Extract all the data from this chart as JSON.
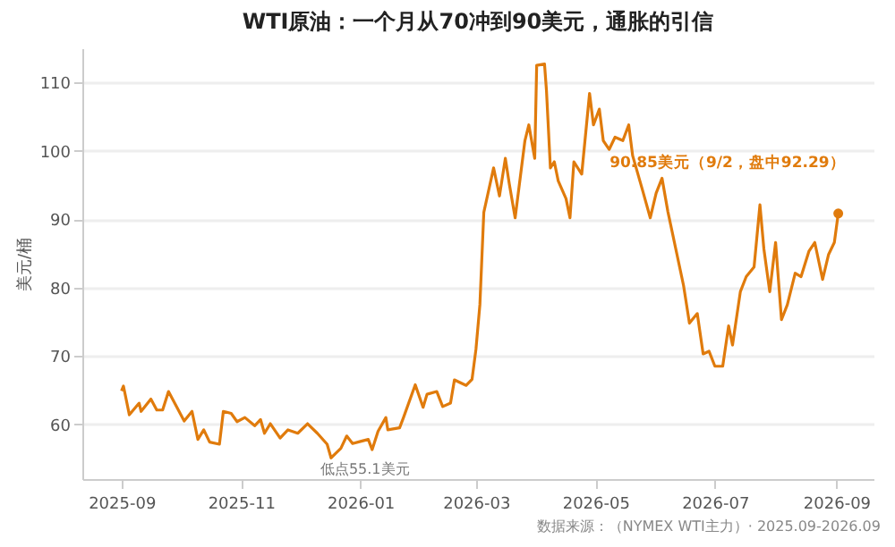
{
  "chart_data": {
    "type": "line",
    "title": "WTI原油：一个月从70冲到90美元，通胀的引信",
    "ylabel": "美元/桶",
    "x": [
      "2025-09-01",
      "2025-09-02",
      "2025-09-05",
      "2025-09-10",
      "2025-09-11",
      "2025-09-16",
      "2025-09-19",
      "2025-09-22",
      "2025-09-25",
      "2025-10-03",
      "2025-10-07",
      "2025-10-10",
      "2025-10-13",
      "2025-10-16",
      "2025-10-21",
      "2025-10-23",
      "2025-10-27",
      "2025-10-30",
      "2025-11-03",
      "2025-11-08",
      "2025-11-11",
      "2025-11-13",
      "2025-11-16",
      "2025-11-21",
      "2025-11-25",
      "2025-11-30",
      "2025-12-05",
      "2025-12-10",
      "2025-12-15",
      "2025-12-17",
      "2025-12-22",
      "2025-12-25",
      "2025-12-28",
      "2026-01-01",
      "2026-01-05",
      "2026-01-07",
      "2026-01-10",
      "2026-01-14",
      "2026-01-15",
      "2026-01-21",
      "2026-01-23",
      "2026-01-29",
      "2026-02-02",
      "2026-02-04",
      "2026-02-09",
      "2026-02-12",
      "2026-02-16",
      "2026-02-18",
      "2026-02-24",
      "2026-02-27",
      "2026-03-01",
      "2026-03-03",
      "2026-03-05",
      "2026-03-10",
      "2026-03-13",
      "2026-03-16",
      "2026-03-18",
      "2026-03-21",
      "2026-03-26",
      "2026-03-28",
      "2026-03-31",
      "2026-04-01",
      "2026-04-05",
      "2026-04-06",
      "2026-04-08",
      "2026-04-10",
      "2026-04-12",
      "2026-04-16",
      "2026-04-18",
      "2026-04-20",
      "2026-04-24",
      "2026-04-28",
      "2026-04-30",
      "2026-05-03",
      "2026-05-05",
      "2026-05-08",
      "2026-05-11",
      "2026-05-15",
      "2026-05-18",
      "2026-05-20",
      "2026-05-25",
      "2026-05-29",
      "2026-06-01",
      "2026-06-04",
      "2026-06-07",
      "2026-06-15",
      "2026-06-18",
      "2026-06-22",
      "2026-06-25",
      "2026-06-28",
      "2026-07-01",
      "2026-07-05",
      "2026-07-08",
      "2026-07-10",
      "2026-07-14",
      "2026-07-17",
      "2026-07-21",
      "2026-07-24",
      "2026-07-26",
      "2026-07-29",
      "2026-08-01",
      "2026-08-04",
      "2026-08-07",
      "2026-08-11",
      "2026-08-14",
      "2026-08-18",
      "2026-08-21",
      "2026-08-25",
      "2026-08-28",
      "2026-08-31",
      "2026-09-02"
    ],
    "series": [
      {
        "color": "#e07b0c",
        "values": [
          64.9,
          65.6,
          61.4,
          63.1,
          61.9,
          63.7,
          62.1,
          62.1,
          64.8,
          60.5,
          61.9,
          57.8,
          59.2,
          57.4,
          57.1,
          61.9,
          61.6,
          60.4,
          61,
          59.8,
          60.7,
          58.7,
          60.1,
          58,
          59.2,
          58.7,
          60.1,
          58.7,
          57.1,
          55.1,
          56.5,
          58.3,
          57.2,
          57.5,
          57.8,
          56.3,
          59,
          61,
          59.2,
          59.5,
          61,
          65.8,
          62.5,
          64.4,
          64.8,
          62.6,
          63.1,
          66.5,
          65.7,
          66.6,
          71,
          77.5,
          91,
          97.5,
          93.4,
          98.9,
          95.2,
          90.2,
          101.5,
          103.8,
          98.9,
          112.5,
          112.7,
          108.8,
          97.5,
          98.4,
          95.6,
          93,
          90.2,
          98.4,
          96.6,
          108.4,
          103.8,
          106.1,
          101.5,
          100.2,
          102,
          101.5,
          103.8,
          99.3,
          94.3,
          90.2,
          93.8,
          96,
          91.1,
          80.3,
          74.8,
          76.2,
          70.3,
          70.7,
          68.5,
          68.5,
          74.4,
          71.6,
          79.4,
          81.6,
          83,
          92.1,
          85.7,
          79.4,
          86.6,
          75.3,
          77.5,
          82.1,
          81.6,
          85.3,
          86.6,
          81.2,
          84.8,
          86.6,
          90.85
        ]
      }
    ],
    "xlim": [
      "2025-08-12",
      "2026-09-20"
    ],
    "xticks": [
      "2025-09",
      "2025-11",
      "2026-01",
      "2026-03",
      "2026-05",
      "2026-07",
      "2026-09"
    ],
    "ylim": [
      52,
      115
    ],
    "yticks": [
      60,
      70,
      80,
      90,
      100,
      110
    ],
    "grid": "y",
    "annotations": [
      {
        "text": "90.85美元（9/2，盘中92.29）",
        "x": "2026-09-02",
        "y": 90.85
      },
      {
        "text": "低点55.1美元",
        "x": "2025-12-17",
        "y": 55.1
      },
      "数据来源：（NYMEX WTI主力）· 2025.09-2026.09"
    ]
  }
}
